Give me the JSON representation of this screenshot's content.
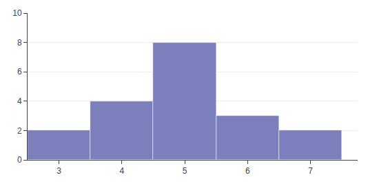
{
  "chart_data": {
    "type": "bar",
    "x": [
      3,
      4,
      5,
      6,
      7
    ],
    "values": [
      2,
      4,
      8,
      3,
      2
    ],
    "color": "#7b7fbb",
    "xlim": [
      2.5,
      7.75
    ],
    "ylim": [
      0,
      10
    ],
    "xticks": [
      3,
      4,
      5,
      6,
      7
    ],
    "yticks": [
      0,
      2,
      4,
      6,
      8,
      10
    ],
    "grid": true
  }
}
